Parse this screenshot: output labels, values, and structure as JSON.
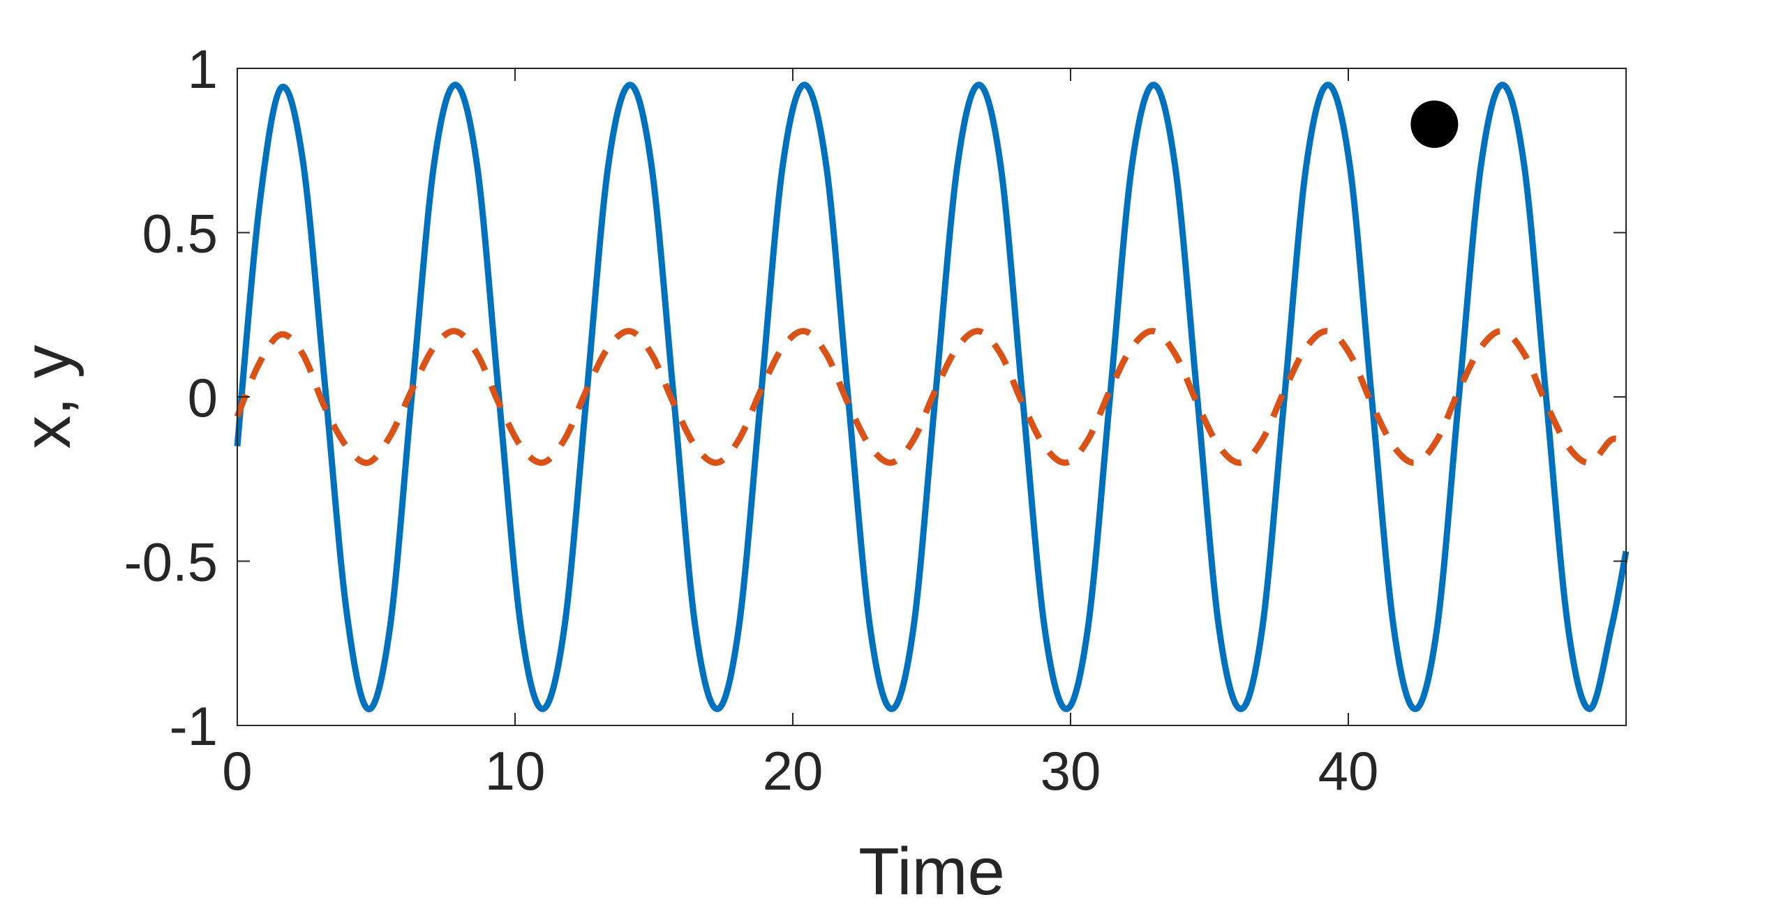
{
  "chart_data": {
    "type": "line",
    "title": "",
    "xlabel": "Time",
    "ylabel": "x, y",
    "xlim": [
      0,
      50
    ],
    "ylim": [
      -1,
      1
    ],
    "xticks": [
      0,
      10,
      20,
      30,
      40
    ],
    "xtick_labels": [
      "0",
      "10",
      "20",
      "30",
      "40"
    ],
    "yticks": [
      -1,
      -0.5,
      0,
      0.5,
      1
    ],
    "ytick_labels": [
      "-1",
      "-0.5",
      "0",
      "0.5",
      "1"
    ],
    "grid": false,
    "series": [
      {
        "style": "solid",
        "color": "#0072BD",
        "x": [
          0,
          0.78,
          1.57,
          2.36,
          3.14,
          3.93,
          4.71,
          5.5,
          6.28,
          7.07,
          7.85,
          8.64,
          9.42,
          10.21,
          10.99,
          11.78,
          12.57,
          13.35,
          14.14,
          14.92,
          15.71,
          16.49,
          17.28,
          18.06,
          18.85,
          19.63,
          20.42,
          21.21,
          21.99,
          22.78,
          23.56,
          24.35,
          25.13,
          25.92,
          26.7,
          27.49,
          28.27,
          29.06,
          29.85,
          30.63,
          31.42,
          32.2,
          32.99,
          33.77,
          34.56,
          35.34,
          36.13,
          36.91,
          37.7,
          38.48,
          39.27,
          40.06,
          40.84,
          41.63,
          42.41,
          43.2,
          43.98,
          44.77,
          45.55,
          46.34,
          47.12,
          47.91,
          48.69,
          49.48,
          50.0
        ],
        "y": [
          -0.15,
          0.57,
          0.94,
          0.72,
          0.05,
          -0.65,
          -0.95,
          -0.7,
          0.0,
          0.7,
          0.95,
          0.7,
          0.0,
          -0.7,
          -0.95,
          -0.7,
          0.0,
          0.7,
          0.95,
          0.7,
          0.0,
          -0.7,
          -0.95,
          -0.7,
          0.0,
          0.7,
          0.95,
          0.7,
          0.0,
          -0.7,
          -0.95,
          -0.7,
          0.0,
          0.7,
          0.95,
          0.7,
          0.0,
          -0.7,
          -0.95,
          -0.7,
          0.0,
          0.7,
          0.95,
          0.7,
          0.0,
          -0.7,
          -0.95,
          -0.7,
          0.0,
          0.7,
          0.95,
          0.7,
          0.0,
          -0.7,
          -0.95,
          -0.7,
          0.0,
          0.7,
          0.95,
          0.7,
          0.0,
          -0.7,
          -0.95,
          -0.7,
          -0.47
        ]
      },
      {
        "style": "dashed",
        "color": "#D95319",
        "x": [
          0,
          0.78,
          1.57,
          2.36,
          3.14,
          3.93,
          4.71,
          5.5,
          6.28,
          7.07,
          7.85,
          8.64,
          9.42,
          10.21,
          10.99,
          11.78,
          12.57,
          13.35,
          14.14,
          14.92,
          15.71,
          16.49,
          17.28,
          18.06,
          18.85,
          19.63,
          20.42,
          21.21,
          21.99,
          22.78,
          23.56,
          24.35,
          25.13,
          25.92,
          26.7,
          27.49,
          28.27,
          29.06,
          29.85,
          30.63,
          31.42,
          32.2,
          32.99,
          33.77,
          34.56,
          35.34,
          36.13,
          36.91,
          37.7,
          38.48,
          39.27,
          40.06,
          40.84,
          41.63,
          42.41,
          43.2,
          43.98,
          44.77,
          45.55,
          46.34,
          47.12,
          47.91,
          48.69,
          49.48,
          50.0
        ],
        "y": [
          -0.06,
          0.1,
          0.19,
          0.13,
          -0.03,
          -0.15,
          -0.2,
          -0.12,
          0.02,
          0.15,
          0.2,
          0.13,
          -0.02,
          -0.15,
          -0.2,
          -0.13,
          0.02,
          0.15,
          0.2,
          0.13,
          -0.02,
          -0.15,
          -0.2,
          -0.13,
          0.02,
          0.15,
          0.2,
          0.13,
          -0.02,
          -0.15,
          -0.2,
          -0.13,
          0.02,
          0.15,
          0.2,
          0.13,
          -0.02,
          -0.15,
          -0.2,
          -0.13,
          0.02,
          0.15,
          0.2,
          0.13,
          -0.02,
          -0.15,
          -0.2,
          -0.13,
          0.02,
          0.15,
          0.2,
          0.13,
          -0.02,
          -0.15,
          -0.2,
          -0.13,
          0.02,
          0.15,
          0.2,
          0.13,
          -0.02,
          -0.15,
          -0.2,
          -0.13,
          -0.14
        ]
      }
    ],
    "markers": [
      {
        "x": 43.1,
        "y": 0.83,
        "color": "#000000"
      }
    ]
  }
}
